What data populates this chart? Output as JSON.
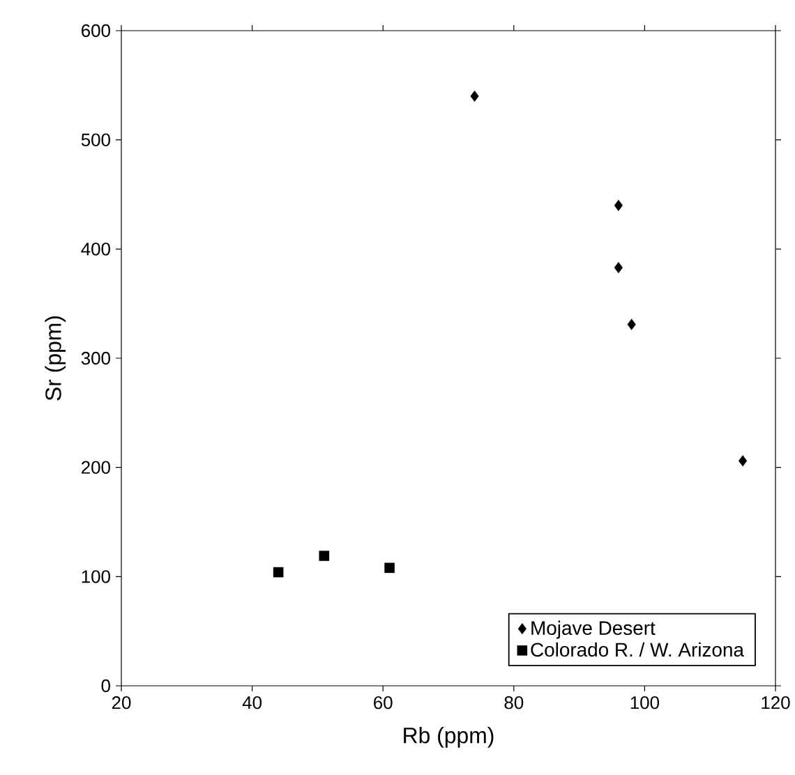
{
  "chart_data": {
    "type": "scatter",
    "xlabel": "Rb (ppm)",
    "ylabel": "Sr (ppm)",
    "xlim": [
      20,
      120
    ],
    "xticks": [
      20,
      40,
      60,
      80,
      100,
      120
    ],
    "ylim": [
      0,
      600
    ],
    "yticks": [
      0,
      100,
      200,
      300,
      400,
      500,
      600
    ],
    "grid": false,
    "legend": "bottom right",
    "series": [
      {
        "name": "Mojave Desert",
        "color": "#000000",
        "marker": "diamond",
        "x": [
          74,
          96,
          96,
          98,
          115
        ],
        "values": [
          540,
          440,
          383,
          331,
          206
        ]
      },
      {
        "name": "Colorado R. / W. Arizona",
        "color": "#000000",
        "marker": "square",
        "x": [
          44,
          51,
          61
        ],
        "values": [
          104,
          119,
          108
        ]
      }
    ]
  }
}
